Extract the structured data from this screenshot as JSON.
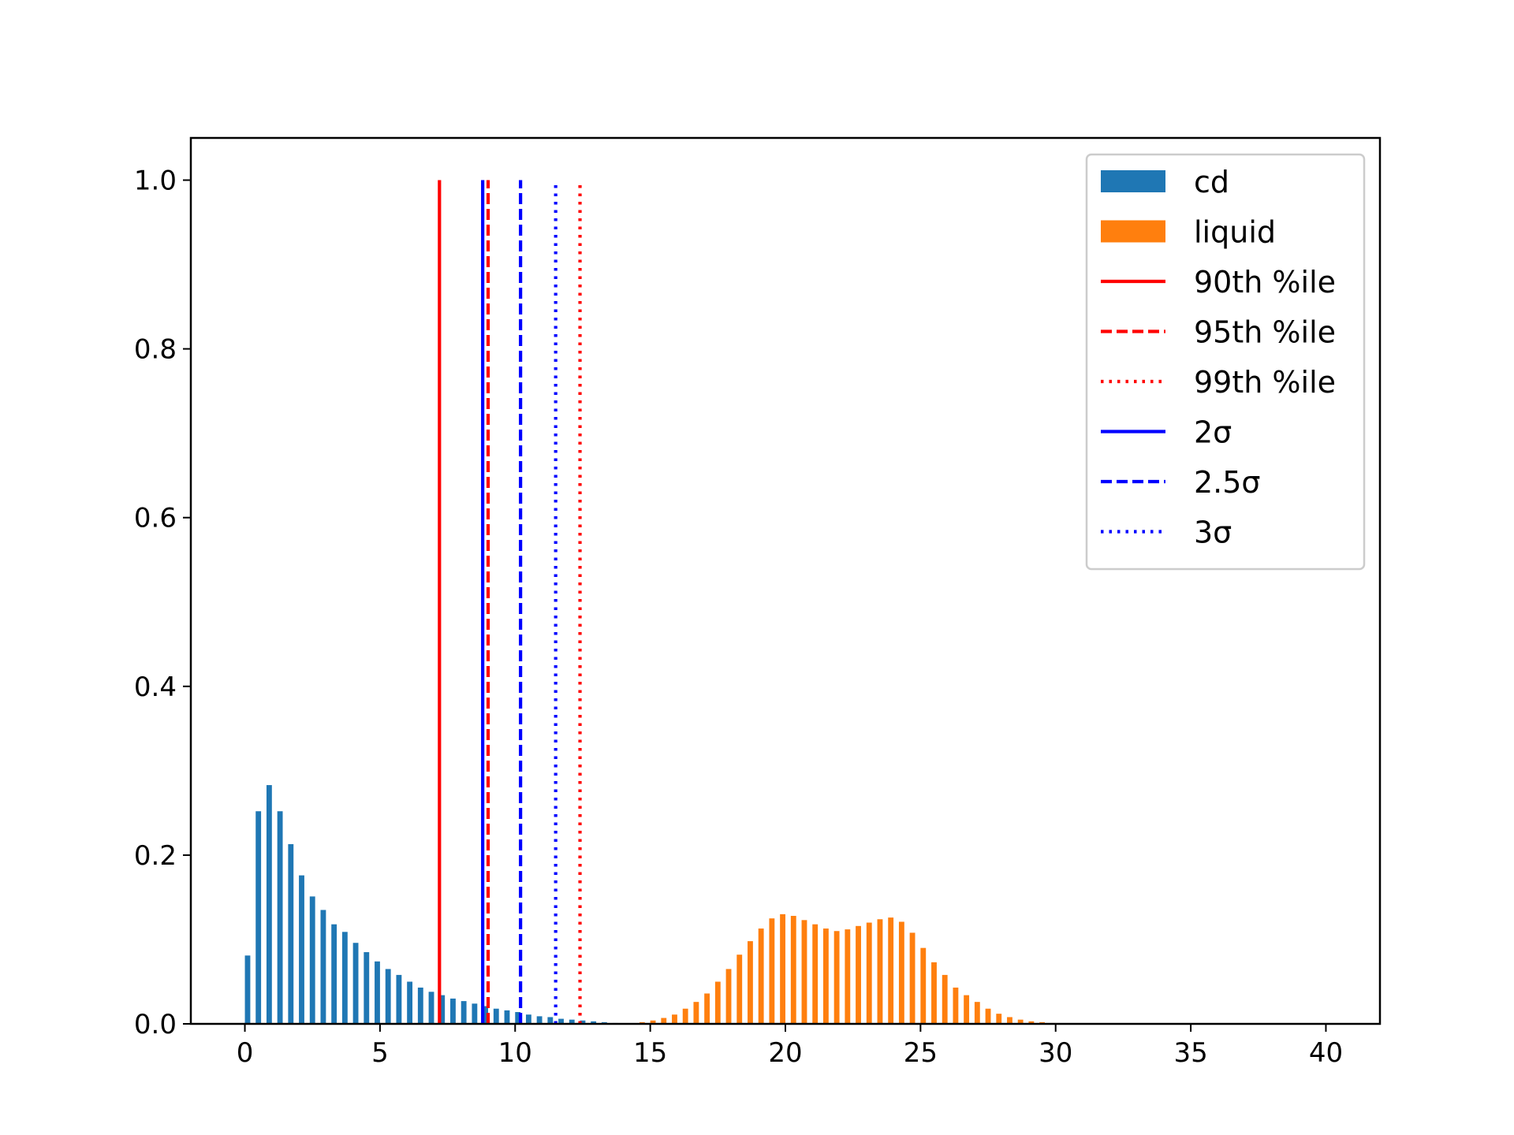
{
  "chart_data": {
    "type": "bar",
    "title": "",
    "xlabel": "",
    "ylabel": "",
    "xlim": [
      -2,
      42
    ],
    "ylim": [
      0,
      1.05
    ],
    "grid": false,
    "legend_placement": "top-right",
    "x_ticks": [
      "0",
      "5",
      "10",
      "15",
      "20",
      "25",
      "30",
      "35",
      "40"
    ],
    "y_ticks": [
      "0.0",
      "0.2",
      "0.4",
      "0.6",
      "0.8",
      "1.0"
    ],
    "bar_width": 0.2,
    "series": [
      {
        "name": "cd",
        "color": "#1f77b4",
        "x": [
          0.1,
          0.5,
          0.9,
          1.3,
          1.7,
          2.1,
          2.5,
          2.9,
          3.3,
          3.7,
          4.1,
          4.5,
          4.9,
          5.3,
          5.7,
          6.1,
          6.5,
          6.9,
          7.3,
          7.7,
          8.1,
          8.5,
          8.9,
          9.3,
          9.7,
          10.1,
          10.5,
          10.9,
          11.3,
          11.7,
          12.1,
          12.5,
          12.9,
          13.3,
          13.7
        ],
        "values": [
          0.081,
          0.252,
          0.283,
          0.252,
          0.213,
          0.176,
          0.151,
          0.135,
          0.118,
          0.109,
          0.096,
          0.085,
          0.074,
          0.065,
          0.058,
          0.05,
          0.043,
          0.038,
          0.034,
          0.03,
          0.027,
          0.024,
          0.021,
          0.018,
          0.016,
          0.014,
          0.011,
          0.009,
          0.008,
          0.006,
          0.005,
          0.004,
          0.003,
          0.002,
          0.001
        ]
      },
      {
        "name": "liquid",
        "color": "#ff7f0e",
        "x": [
          14.7,
          15.1,
          15.5,
          15.9,
          16.3,
          16.7,
          17.1,
          17.5,
          17.9,
          18.3,
          18.7,
          19.1,
          19.5,
          19.9,
          20.3,
          20.7,
          21.1,
          21.5,
          21.9,
          22.3,
          22.7,
          23.1,
          23.5,
          23.9,
          24.3,
          24.7,
          25.1,
          25.5,
          25.9,
          26.3,
          26.7,
          27.1,
          27.5,
          27.9,
          28.3,
          28.7,
          29.1,
          29.5,
          29.9
        ],
        "values": [
          0.002,
          0.004,
          0.007,
          0.011,
          0.018,
          0.026,
          0.036,
          0.05,
          0.065,
          0.082,
          0.098,
          0.113,
          0.125,
          0.13,
          0.128,
          0.123,
          0.118,
          0.113,
          0.11,
          0.112,
          0.116,
          0.12,
          0.124,
          0.126,
          0.121,
          0.108,
          0.09,
          0.073,
          0.058,
          0.043,
          0.034,
          0.026,
          0.018,
          0.012,
          0.008,
          0.005,
          0.003,
          0.002,
          0.001
        ]
      }
    ],
    "vlines": [
      {
        "name": "90th %ile",
        "label": "90th %ile",
        "x": 7.2,
        "ymax": 1.0,
        "color": "#ff0000",
        "style": "solid"
      },
      {
        "name": "95th %ile",
        "label": "95th %ile",
        "x": 9.0,
        "ymax": 1.0,
        "color": "#ff0000",
        "style": "dashed"
      },
      {
        "name": "99th %ile",
        "label": "99th %ile",
        "x": 12.4,
        "ymax": 1.0,
        "color": "#ff0000",
        "style": "dotted"
      },
      {
        "name": "2sigma",
        "label": "2σ",
        "x": 8.8,
        "ymax": 1.0,
        "color": "#0000ff",
        "style": "solid"
      },
      {
        "name": "2.5sigma",
        "label": "2.5σ",
        "x": 10.2,
        "ymax": 1.0,
        "color": "#0000ff",
        "style": "dashed"
      },
      {
        "name": "3sigma",
        "label": "3σ",
        "x": 11.5,
        "ymax": 1.0,
        "color": "#0000ff",
        "style": "dotted"
      }
    ],
    "legend": [
      {
        "label": "cd",
        "kind": "patch",
        "color": "#1f77b4",
        "style": "solid"
      },
      {
        "label": "liquid",
        "kind": "patch",
        "color": "#ff7f0e",
        "style": "solid"
      },
      {
        "label": "90th %ile",
        "kind": "line",
        "color": "#ff0000",
        "style": "solid"
      },
      {
        "label": "95th %ile",
        "kind": "line",
        "color": "#ff0000",
        "style": "dashed"
      },
      {
        "label": "99th %ile",
        "kind": "line",
        "color": "#ff0000",
        "style": "dotted"
      },
      {
        "label": "2σ",
        "kind": "line",
        "color": "#0000ff",
        "style": "solid"
      },
      {
        "label": "2.5σ",
        "kind": "line",
        "color": "#0000ff",
        "style": "dashed"
      },
      {
        "label": "3σ",
        "kind": "line",
        "color": "#0000ff",
        "style": "dotted"
      }
    ]
  }
}
